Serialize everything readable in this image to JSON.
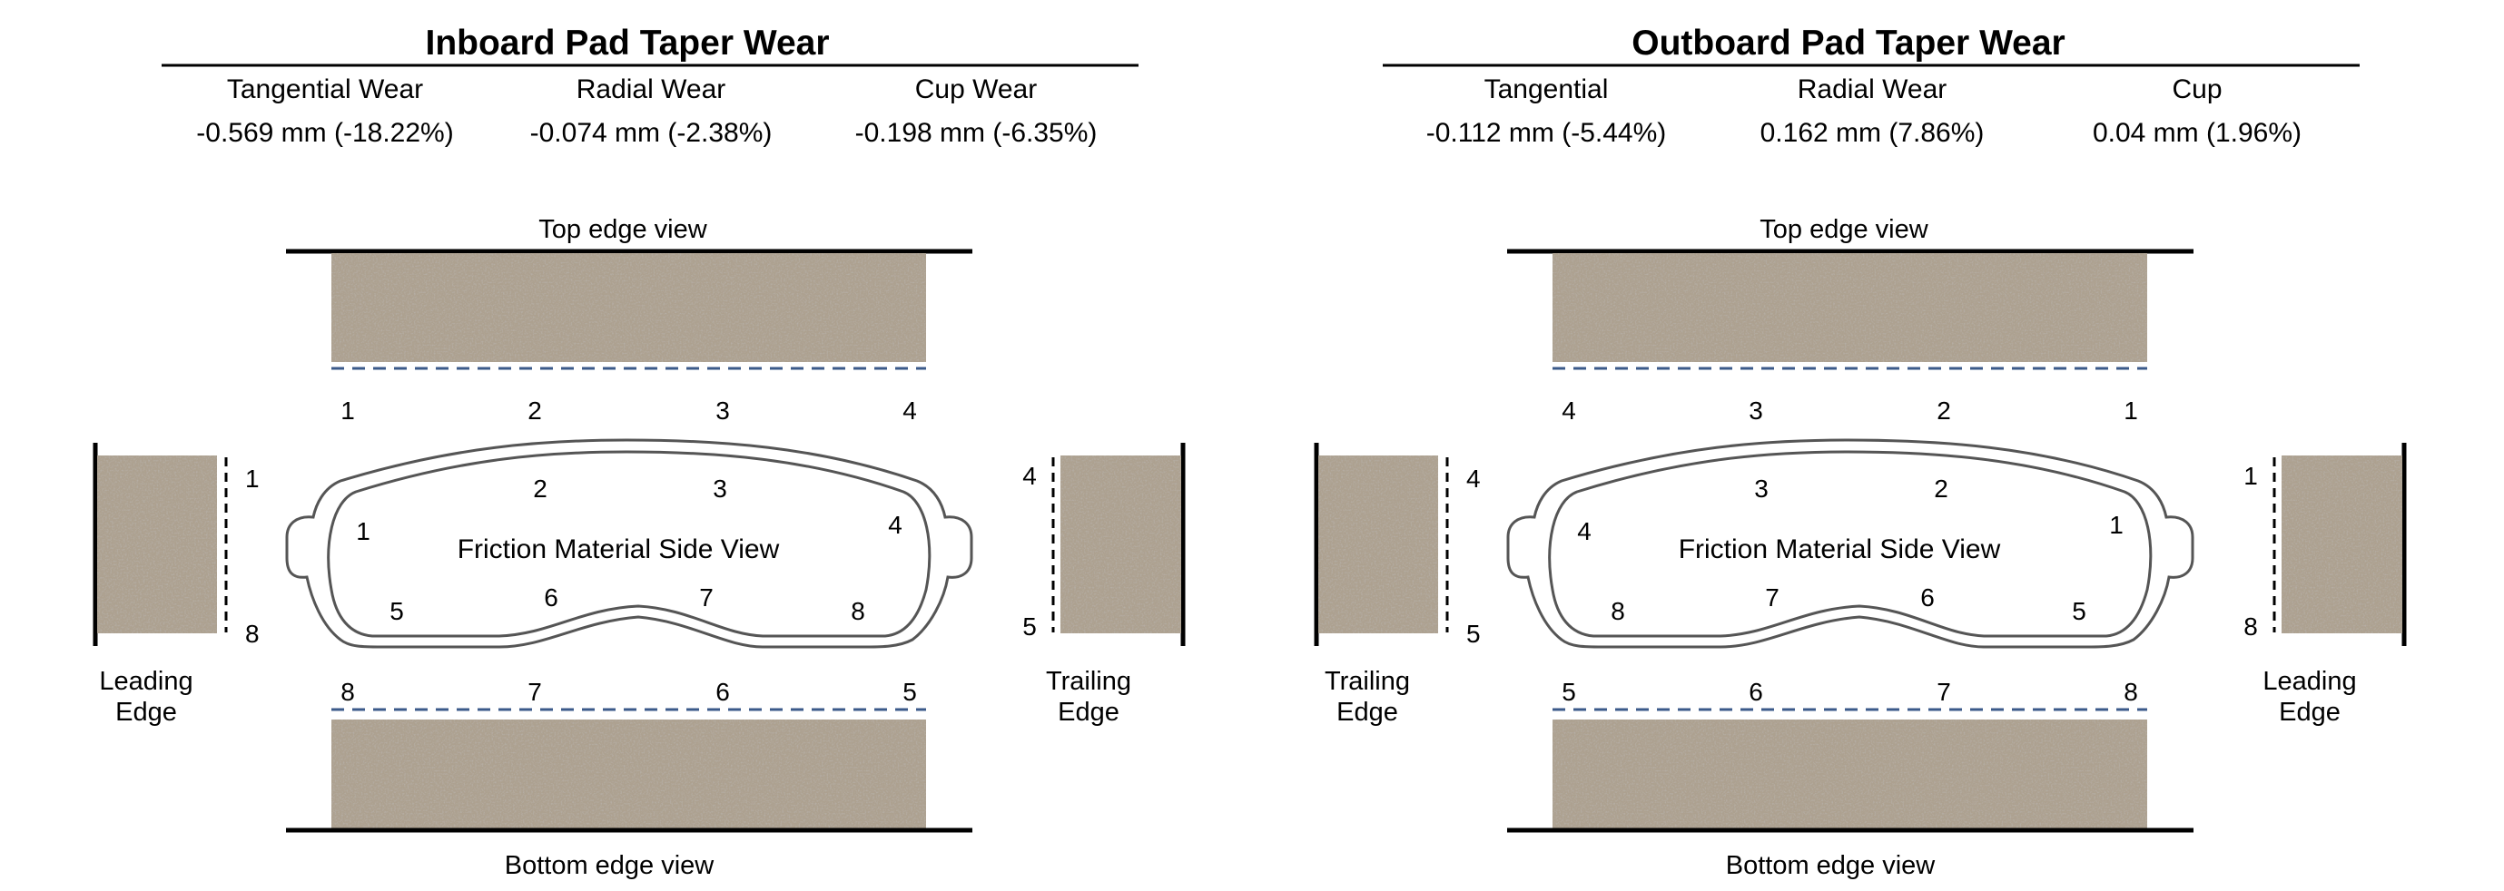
{
  "inboard": {
    "title": "Inboard Pad Taper Wear",
    "headers": [
      "Tangential Wear",
      "Radial Wear",
      "Cup Wear"
    ],
    "values": [
      "-0.569 mm (-18.22%)",
      "-0.074 mm (-2.38%)",
      "-0.198 mm (-6.35%)"
    ],
    "top_view_label": "Top edge view",
    "bottom_view_label": "Bottom edge view",
    "side_view_label": "Friction Material Side View",
    "top_numbers": [
      "1",
      "2",
      "3",
      "4"
    ],
    "bottom_numbers": [
      "8",
      "7",
      "6",
      "5"
    ],
    "side_numbers": [
      "1",
      "2",
      "3",
      "4",
      "5",
      "6",
      "7",
      "8"
    ],
    "left_edge": {
      "line1": "Leading",
      "line2": "Edge",
      "top_number": "1",
      "bottom_number": "8"
    },
    "right_edge": {
      "line1": "Trailing",
      "line2": "Edge",
      "top_number": "4",
      "bottom_number": "5"
    }
  },
  "outboard": {
    "title": "Outboard Pad Taper Wear",
    "headers": [
      "Tangential",
      "Radial Wear",
      "Cup"
    ],
    "values": [
      "-0.112 mm (-5.44%)",
      "0.162 mm (7.86%)",
      "0.04 mm (1.96%)"
    ],
    "top_view_label": "Top edge view",
    "bottom_view_label": "Bottom edge view",
    "side_view_label": "Friction Material Side View",
    "top_numbers": [
      "4",
      "3",
      "2",
      "1"
    ],
    "bottom_numbers": [
      "5",
      "6",
      "7",
      "8"
    ],
    "side_numbers": [
      "4",
      "3",
      "2",
      "1",
      "8",
      "7",
      "6",
      "5"
    ],
    "left_edge": {
      "line1": "Trailing",
      "line2": "Edge",
      "top_number": "4",
      "bottom_number": "5"
    },
    "right_edge": {
      "line1": "Leading",
      "line2": "Edge",
      "top_number": "1",
      "bottom_number": "8"
    }
  },
  "colors": {
    "friction_material": "#a69a8b",
    "dashed_line": "#3b5a8a",
    "outline": "#555555"
  }
}
